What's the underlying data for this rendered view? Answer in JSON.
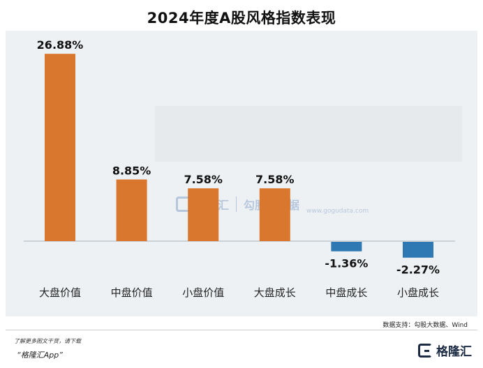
{
  "title": "2024年度A股风格指数表现",
  "chart_data": {
    "type": "bar",
    "title": "2024年度A股风格指数表现",
    "categories": [
      "大盘价值",
      "中盘价值",
      "小盘价值",
      "大盘成长",
      "中盘成长",
      "小盘成长"
    ],
    "values": [
      26.88,
      8.85,
      7.58,
      7.58,
      -1.36,
      -2.27
    ],
    "value_labels": [
      "26.88%",
      "8.85%",
      "7.58%",
      "7.58%",
      "-1.36%",
      "-2.27%"
    ],
    "unit": "%",
    "ylim": [
      -2.27,
      26.88
    ],
    "grid": false,
    "legend": "none",
    "colors": {
      "positive": "#d9772e",
      "negative": "#2e78b4",
      "axis": "#a7b2bd"
    }
  },
  "watermark": {
    "brand": "格隆汇",
    "partner": "勾股大数据",
    "partner_sub": "www.gogudata.com"
  },
  "source": "数据支持：勾股大数据、Wind",
  "footer": {
    "note": "了解更多图文干货，请下载",
    "app": "“格隆汇App”",
    "brand": "格隆汇"
  }
}
